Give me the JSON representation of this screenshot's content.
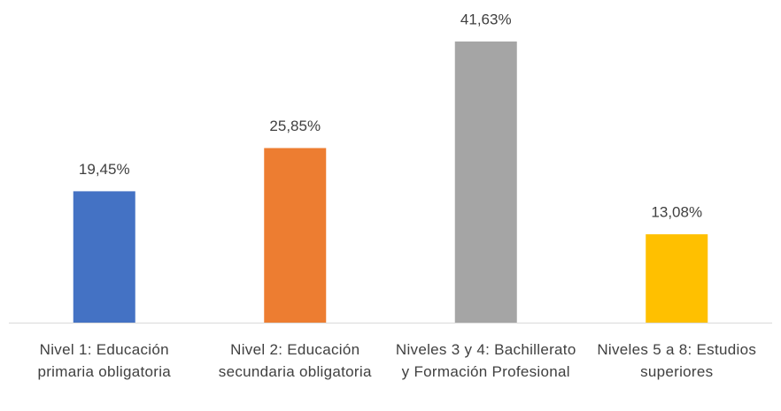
{
  "chart_data": {
    "type": "bar",
    "categories": [
      "Nivel 1: Educación primaria obligatoria",
      "Nivel 2: Educación secundaria obligatoria",
      "Niveles 3 y 4: Bachillerato y Formación Profesional",
      "Niveles 5 a 8: Estudios superiores"
    ],
    "values": [
      19.45,
      25.85,
      41.63,
      13.08
    ],
    "value_labels": [
      "19,45%",
      "25,85%",
      "41,63%",
      "13,08%"
    ],
    "colors": [
      "#4472c4",
      "#ed7d31",
      "#a5a5a5",
      "#ffc000"
    ]
  }
}
